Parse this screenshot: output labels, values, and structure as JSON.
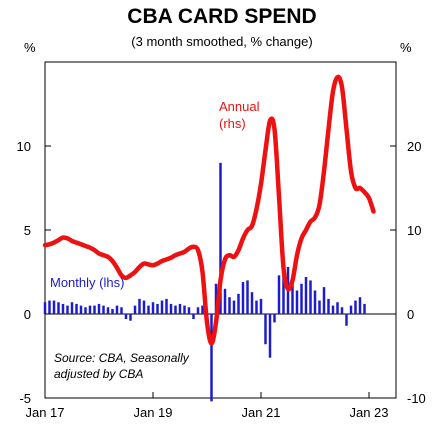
{
  "chart_data": {
    "type": "bar+line",
    "title": "CBA CARD SPEND",
    "subtitle": "(3 month smoothed, % change)",
    "left_axis_label": "%",
    "right_axis_label": "%",
    "left_ylim": [
      -5,
      15
    ],
    "right_ylim": [
      -10,
      30
    ],
    "left_ticks": [
      {
        "v": -5,
        "t": "-5"
      },
      {
        "v": 0,
        "t": "0"
      },
      {
        "v": 5,
        "t": "5"
      },
      {
        "v": 10,
        "t": "10"
      }
    ],
    "right_ticks": [
      {
        "v": -10,
        "t": "-10"
      },
      {
        "v": 0,
        "t": "0"
      },
      {
        "v": 10,
        "t": "10"
      },
      {
        "v": 20,
        "t": "20"
      }
    ],
    "x_ticks": [
      {
        "i": 0,
        "t": "Jan 17"
      },
      {
        "i": 24,
        "t": "Jan 19"
      },
      {
        "i": 48,
        "t": "Jan 21"
      },
      {
        "i": 72,
        "t": "Jan 23"
      }
    ],
    "x_range": [
      0,
      78
    ],
    "annotations": {
      "annual": [
        "Annual",
        "(rhs)"
      ],
      "monthly": "Monthly (lhs)",
      "source": [
        "Source: CBA, Seasonally",
        "adjusted by CBA"
      ]
    },
    "series": [
      {
        "name": "Monthly (lhs)",
        "type": "bar",
        "axis": "left",
        "color": "#1c1ccc",
        "values": [
          0.7,
          0.8,
          0.8,
          0.7,
          0.6,
          0.5,
          0.7,
          0.6,
          0.5,
          0.4,
          0.5,
          0.5,
          0.6,
          0.5,
          0.4,
          0.3,
          0.5,
          0.4,
          -0.3,
          -0.4,
          0.5,
          0.9,
          0.8,
          0.5,
          0.7,
          0.6,
          0.8,
          0.9,
          0.6,
          0.5,
          0.6,
          0.5,
          0.4,
          -0.3,
          0.4,
          0.5,
          -0.5,
          -5.2,
          1.8,
          9.0,
          1.5,
          1.0,
          0.8,
          1.2,
          1.9,
          2.0,
          1.3,
          0.8,
          0.9,
          -1.8,
          -2.6,
          -0.5,
          2.3,
          3.0,
          2.8,
          1.8,
          1.4,
          1.8,
          2.2,
          2.0,
          1.4,
          0.8,
          1.6,
          0.9,
          0.5,
          0.7,
          0.4,
          -0.7,
          0.5,
          0.8,
          1.0,
          0.6
        ]
      },
      {
        "name": "Annual (rhs)",
        "type": "line",
        "axis": "right",
        "color": "#ee1111",
        "values": [
          8.2,
          8.3,
          8.5,
          8.8,
          9.1,
          9.0,
          8.7,
          8.5,
          8.3,
          8.1,
          7.9,
          7.6,
          7.2,
          7.0,
          6.8,
          6.3,
          5.5,
          4.6,
          4.3,
          4.6,
          5.0,
          5.6,
          6.0,
          5.9,
          5.8,
          6.0,
          6.3,
          6.5,
          6.7,
          7.0,
          7.2,
          7.4,
          7.8,
          8.0,
          7.6,
          5.0,
          -1.0,
          -3.5,
          -1.0,
          4.0,
          6.5,
          7.0,
          6.8,
          7.6,
          9.0,
          10.0,
          10.5,
          12.5,
          15.5,
          19.5,
          23.0,
          22.0,
          14.0,
          5.5,
          3.0,
          4.0,
          7.0,
          9.0,
          10.0,
          11.0,
          11.5,
          13.0,
          17.0,
          22.0,
          26.5,
          28.2,
          27.0,
          22.0,
          17.0,
          15.0,
          15.0,
          14.5,
          13.8,
          12.2
        ]
      }
    ]
  }
}
